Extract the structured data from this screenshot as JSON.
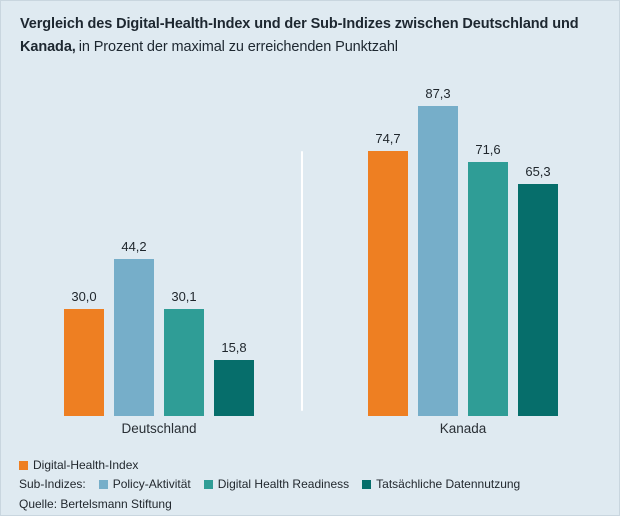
{
  "title": {
    "bold": "Vergleich des Digital-Health-Index und der Sub-Indizes zwischen Deutschland und Kanada,",
    "regular": "in Prozent der maximal zu erreichenden Punktzahl"
  },
  "chart_data": {
    "type": "bar",
    "title": "Vergleich des Digital-Health-Index und der Sub-Indizes zwischen Deutschland und Kanada",
    "subtitle": "in Prozent der maximal zu erreichenden Punktzahl",
    "categories": [
      "Deutschland",
      "Kanada"
    ],
    "series": [
      {
        "name": "Digital-Health-Index",
        "color": "#ee7f22",
        "values": [
          30.0,
          74.7
        ]
      },
      {
        "name": "Policy-Aktivität",
        "color": "#76aec9",
        "values": [
          44.2,
          87.3
        ]
      },
      {
        "name": "Digital Health Readiness",
        "color": "#2f9d96",
        "values": [
          30.1,
          71.6
        ]
      },
      {
        "name": "Tatsächliche Datennutzung",
        "color": "#066e6b",
        "values": [
          15.8,
          65.3
        ]
      }
    ],
    "value_labels": [
      [
        "30,0",
        "44,2",
        "30,1",
        "15,8"
      ],
      [
        "74,7",
        "87,3",
        "71,6",
        "65,3"
      ]
    ],
    "ylim": [
      0,
      100
    ],
    "grid": false,
    "legend_position": "bottom"
  },
  "legend": {
    "index": {
      "label": "Digital-Health-Index",
      "color": "#ee7f22"
    },
    "sub_prefix": "Sub-Indizes:",
    "sub_indices": [
      {
        "label": "Policy-Aktivität",
        "color": "#76aec9"
      },
      {
        "label": "Digital Health Readiness",
        "color": "#2f9d96"
      },
      {
        "label": "Tatsächliche Datennutzung",
        "color": "#066e6b"
      }
    ]
  },
  "source": "Quelle: Bertelsmann Stiftung",
  "colors": {
    "background": "#dfeaf1",
    "divider": "#ffffff",
    "title_text": "#1d2730"
  }
}
